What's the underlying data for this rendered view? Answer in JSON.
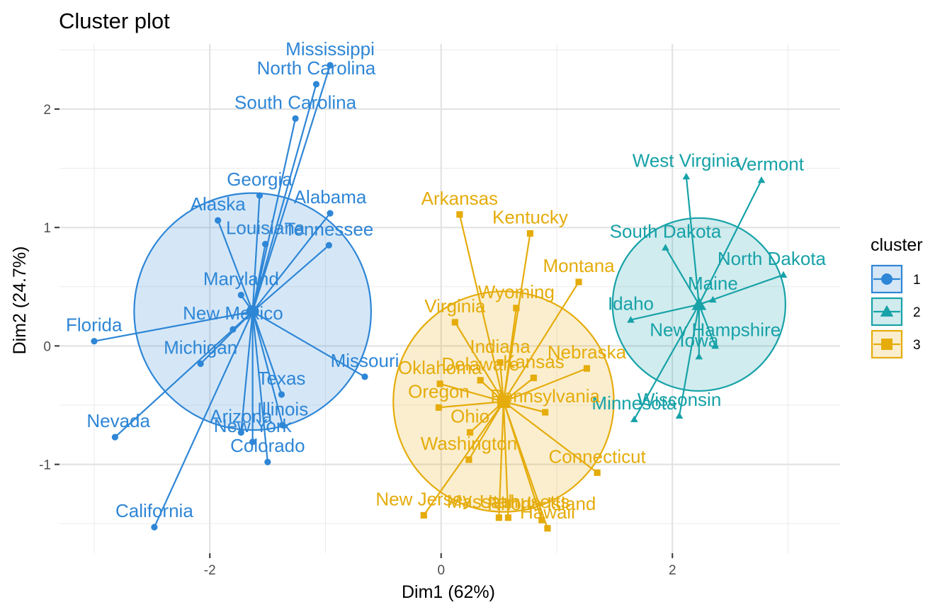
{
  "chart_data": {
    "type": "scatter",
    "title": "Cluster plot",
    "xlabel": "Dim1 (62%)",
    "ylabel": "Dim2 (24.7%)",
    "xlim": [
      -3.3,
      3.45
    ],
    "ylim": [
      -1.75,
      2.55
    ],
    "x_ticks": [
      -2,
      0,
      2
    ],
    "y_ticks": [
      -1,
      0,
      1,
      2
    ],
    "grid": true,
    "legend": {
      "title": "cluster",
      "position": "right"
    },
    "series": [
      {
        "name": "1",
        "color": "#2E86D6",
        "marker": "circle",
        "centroid": [
          -1.63,
          0.29
        ],
        "hull": [
          [
            -3.0,
            0.04
          ],
          [
            -2.48,
            -1.53
          ],
          [
            -0.66,
            -0.26
          ],
          [
            -0.96,
            1.12
          ],
          [
            -1.57,
            1.27
          ],
          [
            -1.93,
            1.06
          ]
        ],
        "points": [
          {
            "label": "Mississippi",
            "x": -0.96,
            "y": 2.37
          },
          {
            "label": "North Carolina",
            "x": -1.08,
            "y": 2.21
          },
          {
            "label": "South Carolina",
            "x": -1.26,
            "y": 1.92
          },
          {
            "label": "Georgia",
            "x": -1.57,
            "y": 1.27
          },
          {
            "label": "Alaska",
            "x": -1.93,
            "y": 1.06
          },
          {
            "label": "Alabama",
            "x": -0.96,
            "y": 1.12
          },
          {
            "label": "Louisiana",
            "x": -1.52,
            "y": 0.86
          },
          {
            "label": "Tennessee",
            "x": -0.97,
            "y": 0.85
          },
          {
            "label": "Maryland",
            "x": -1.73,
            "y": 0.43
          },
          {
            "label": "New Mexico",
            "x": -1.8,
            "y": 0.14
          },
          {
            "label": "Florida",
            "x": -3.0,
            "y": 0.04
          },
          {
            "label": "Michigan",
            "x": -2.08,
            "y": -0.15
          },
          {
            "label": "Missouri",
            "x": -0.66,
            "y": -0.26
          },
          {
            "label": "Texas",
            "x": -1.38,
            "y": -0.41
          },
          {
            "label": "Illinois",
            "x": -1.37,
            "y": -0.67
          },
          {
            "label": "Arizona",
            "x": -1.73,
            "y": -0.73
          },
          {
            "label": "New York",
            "x": -1.63,
            "y": -0.81
          },
          {
            "label": "Nevada",
            "x": -2.82,
            "y": -0.77
          },
          {
            "label": "Colorado",
            "x": -1.5,
            "y": -0.98
          },
          {
            "label": "California",
            "x": -2.48,
            "y": -1.53
          }
        ]
      },
      {
        "name": "2",
        "color": "#17A2A8",
        "marker": "triangle",
        "centroid": [
          2.23,
          0.35
        ],
        "hull": [
          [
            2.12,
            1.43
          ],
          [
            2.77,
            1.4
          ],
          [
            2.96,
            0.6
          ],
          [
            2.06,
            -0.59
          ],
          [
            1.67,
            -0.62
          ],
          [
            1.64,
            0.22
          ],
          [
            1.94,
            0.83
          ]
        ],
        "points": [
          {
            "label": "West Virginia",
            "x": 2.12,
            "y": 1.43
          },
          {
            "label": "Vermont",
            "x": 2.77,
            "y": 1.4
          },
          {
            "label": "South Dakota",
            "x": 1.94,
            "y": 0.83
          },
          {
            "label": "North Dakota",
            "x": 2.96,
            "y": 0.6
          },
          {
            "label": "Idaho",
            "x": 1.64,
            "y": 0.22
          },
          {
            "label": "Maine",
            "x": 2.35,
            "y": 0.39
          },
          {
            "label": "New Hampshire",
            "x": 2.37,
            "y": -0.0
          },
          {
            "label": "Iowa",
            "x": 2.23,
            "y": -0.09
          },
          {
            "label": "Wisconsin",
            "x": 2.06,
            "y": -0.59
          },
          {
            "label": "Minnesota",
            "x": 1.67,
            "y": -0.62
          }
        ]
      },
      {
        "name": "3",
        "color": "#E5AC0C",
        "marker": "square",
        "centroid": [
          0.54,
          -0.47
        ],
        "hull": [
          [
            0.16,
            1.11
          ],
          [
            0.77,
            0.95
          ],
          [
            1.19,
            0.54
          ],
          [
            1.35,
            -1.07
          ],
          [
            0.92,
            -1.54
          ],
          [
            0.5,
            -1.45
          ],
          [
            -0.15,
            -1.43
          ],
          [
            -0.02,
            -0.52
          ]
        ],
        "points": [
          {
            "label": "Arkansas",
            "x": 0.16,
            "y": 1.11
          },
          {
            "label": "Kentucky",
            "x": 0.77,
            "y": 0.95
          },
          {
            "label": "Montana",
            "x": 1.19,
            "y": 0.54
          },
          {
            "label": "Wyoming",
            "x": 0.65,
            "y": 0.32
          },
          {
            "label": "Virginia",
            "x": 0.12,
            "y": 0.2
          },
          {
            "label": "Indiana",
            "x": 0.51,
            "y": -0.14
          },
          {
            "label": "Nebraska",
            "x": 1.26,
            "y": -0.19
          },
          {
            "label": "Delaware",
            "x": 0.34,
            "y": -0.29
          },
          {
            "label": "Kansas",
            "x": 0.8,
            "y": -0.27
          },
          {
            "label": "Oklahoma",
            "x": -0.01,
            "y": -0.32
          },
          {
            "label": "Oregon",
            "x": -0.02,
            "y": -0.52
          },
          {
            "label": "Pennsylvania",
            "x": 0.9,
            "y": -0.56
          },
          {
            "label": "Ohio",
            "x": 0.25,
            "y": -0.73
          },
          {
            "label": "Washington",
            "x": 0.24,
            "y": -0.96
          },
          {
            "label": "Connecticut",
            "x": 1.35,
            "y": -1.07
          },
          {
            "label": "New Jersey",
            "x": -0.15,
            "y": -1.43
          },
          {
            "label": "Utah",
            "x": 0.5,
            "y": -1.45
          },
          {
            "label": "Massachusetts",
            "x": 0.58,
            "y": -1.45
          },
          {
            "label": "Rhode Island",
            "x": 0.87,
            "y": -1.47
          },
          {
            "label": "Hawaii",
            "x": 0.92,
            "y": -1.54
          }
        ]
      }
    ]
  }
}
